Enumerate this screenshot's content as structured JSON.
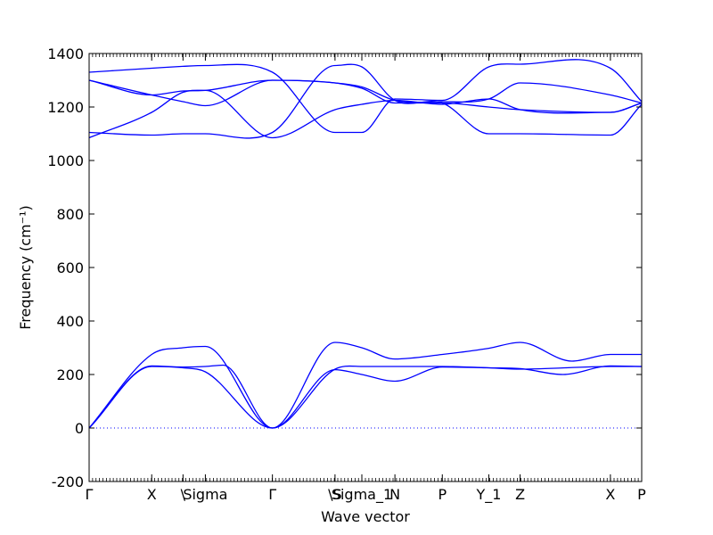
{
  "chart_data": {
    "type": "line",
    "xlabel": "Wave vector",
    "ylabel": "Frequency (cm⁻¹)",
    "ylim": [
      -200,
      1400
    ],
    "yticks": [
      -200,
      0,
      200,
      400,
      600,
      800,
      1000,
      1200,
      1400
    ],
    "grid": false,
    "line_color": "#0000ff",
    "zero_line_color": "#0000ff",
    "xticks": [
      {
        "label": "Γ",
        "pos": 0.0
      },
      {
        "label": "X",
        "pos": 0.7
      },
      {
        "label": "\\",
        "pos": 1.05
      },
      {
        "label": "Sigma",
        "pos": 1.3
      },
      {
        "label": "Γ",
        "pos": 2.05
      },
      {
        "label": "\\S",
        "pos": 2.75
      },
      {
        "label": "Sigma_1",
        "pos": 3.05
      },
      {
        "label": "N",
        "pos": 3.42
      },
      {
        "label": "P",
        "pos": 3.95
      },
      {
        "label": "Y_1",
        "pos": 4.47
      },
      {
        "label": "Z",
        "pos": 4.82
      },
      {
        "label": "X",
        "pos": 5.83
      },
      {
        "label": "P",
        "pos": 6.18
      }
    ],
    "series": [
      {
        "x": [
          0,
          0.7,
          1.05,
          1.3,
          2.05,
          2.75,
          3.05,
          3.42,
          3.95,
          4.47,
          4.82,
          5.83,
          6.18
        ],
        "values": [
          0,
          230,
          225,
          210,
          0,
          220,
          230,
          230,
          230,
          225,
          220,
          230,
          230
        ]
      },
      {
        "x": [
          0,
          0.7,
          1.05,
          1.3,
          1.5,
          2.05,
          2.75,
          3.05,
          3.42,
          3.95,
          4.47,
          4.82,
          5.3,
          5.83,
          6.18
        ],
        "values": [
          0,
          232,
          228,
          230,
          235,
          0,
          218,
          200,
          175,
          228,
          225,
          222,
          200,
          232,
          230
        ]
      },
      {
        "x": [
          0,
          0.7,
          1.05,
          1.3,
          2.05,
          2.75,
          3.05,
          3.42,
          3.95,
          4.47,
          4.82,
          5.4,
          5.83,
          6.18
        ],
        "values": [
          0,
          275,
          300,
          305,
          0,
          320,
          300,
          258,
          275,
          298,
          320,
          250,
          275,
          275
        ]
      },
      {
        "x": [
          0,
          0.7,
          1.05,
          1.3,
          2.05,
          2.75,
          3.05,
          3.42,
          3.95,
          4.47,
          4.82,
          5.83,
          6.18
        ],
        "values": [
          1085,
          1180,
          1255,
          1262,
          1085,
          1190,
          1210,
          1225,
          1210,
          1230,
          1190,
          1180,
          1215
        ]
      },
      {
        "x": [
          0,
          0.7,
          1.05,
          1.3,
          2.05,
          2.75,
          3.05,
          3.42,
          3.95,
          4.47,
          4.82,
          5.83,
          6.18
        ],
        "values": [
          1105,
          1095,
          1100,
          1100,
          1105,
          1355,
          1350,
          1225,
          1215,
          1100,
          1100,
          1095,
          1210
        ]
      },
      {
        "x": [
          0,
          0.7,
          1.05,
          1.3,
          2.05,
          2.75,
          3.05,
          3.42,
          3.95,
          4.47,
          4.82,
          5.83,
          6.18
        ],
        "values": [
          1300,
          1245,
          1220,
          1205,
          1300,
          1290,
          1270,
          1215,
          1215,
          1200,
          1190,
          1180,
          1215
        ]
      },
      {
        "x": [
          0,
          0.7,
          1.05,
          1.3,
          2.05,
          2.75,
          3.05,
          3.42,
          3.95,
          4.47,
          4.82,
          5.83,
          6.18
        ],
        "values": [
          1300,
          1245,
          1260,
          1262,
          1300,
          1290,
          1275,
          1225,
          1220,
          1230,
          1290,
          1245,
          1215
        ]
      },
      {
        "x": [
          0,
          0.7,
          1.05,
          1.3,
          2.05,
          2.75,
          3.05,
          3.42,
          3.95,
          4.47,
          4.82,
          5.83,
          6.18
        ],
        "values": [
          1330,
          1345,
          1352,
          1355,
          1330,
          1105,
          1105,
          1230,
          1225,
          1350,
          1360,
          1345,
          1220
        ]
      }
    ]
  }
}
